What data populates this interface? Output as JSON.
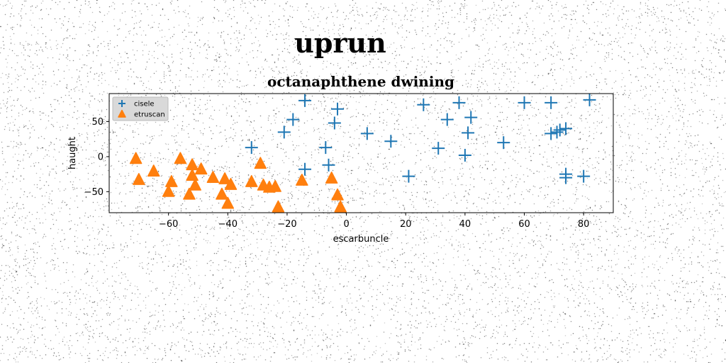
{
  "figure": {
    "suptitle": "uprun"
  },
  "chart_data": {
    "type": "scatter",
    "title": "octanaphthene dwining",
    "xlabel": "escarbuncle",
    "ylabel": "haught",
    "xlim": [
      -80,
      90
    ],
    "ylim": [
      -80,
      90
    ],
    "xticks": [
      -60,
      -40,
      -20,
      0,
      20,
      40,
      60,
      80
    ],
    "yticks": [
      -50,
      0,
      50
    ],
    "grid": false,
    "legend_position": "top-left",
    "series": [
      {
        "name": "cisele",
        "marker": "plus",
        "color": "#1f77b4",
        "points": [
          [
            -14,
            80
          ],
          [
            -18,
            53
          ],
          [
            -21,
            35
          ],
          [
            -3,
            68
          ],
          [
            -4,
            48
          ],
          [
            -32,
            13
          ],
          [
            -7,
            13
          ],
          [
            -14,
            -18
          ],
          [
            -6,
            -12
          ],
          [
            7,
            33
          ],
          [
            15,
            22
          ],
          [
            21,
            -28
          ],
          [
            26,
            74
          ],
          [
            31,
            12
          ],
          [
            34,
            53
          ],
          [
            38,
            77
          ],
          [
            40,
            2
          ],
          [
            41,
            34
          ],
          [
            42,
            56
          ],
          [
            53,
            20
          ],
          [
            60,
            77
          ],
          [
            69,
            77
          ],
          [
            69,
            33
          ],
          [
            71,
            35
          ],
          [
            72,
            38
          ],
          [
            74,
            40
          ],
          [
            74,
            -25
          ],
          [
            74,
            -30
          ],
          [
            80,
            -28
          ],
          [
            82,
            81
          ]
        ]
      },
      {
        "name": "etruscan",
        "marker": "triangle",
        "color": "#ff7f0e",
        "points": [
          [
            -71,
            -3
          ],
          [
            -70,
            -33
          ],
          [
            -65,
            -21
          ],
          [
            -60,
            -50
          ],
          [
            -59,
            -36
          ],
          [
            -56,
            -3
          ],
          [
            -53,
            -54
          ],
          [
            -52,
            -27
          ],
          [
            -52,
            -12
          ],
          [
            -51,
            -41
          ],
          [
            -49,
            -18
          ],
          [
            -45,
            -30
          ],
          [
            -42,
            -54
          ],
          [
            -41,
            -32
          ],
          [
            -40,
            -67
          ],
          [
            -39,
            -40
          ],
          [
            -32,
            -36
          ],
          [
            -29,
            -10
          ],
          [
            -28,
            -41
          ],
          [
            -26,
            -44
          ],
          [
            -24,
            -43
          ],
          [
            -23,
            -72
          ],
          [
            -15,
            -34
          ],
          [
            -5,
            -31
          ],
          [
            -3,
            -55
          ],
          [
            -2,
            -72
          ]
        ]
      }
    ]
  }
}
